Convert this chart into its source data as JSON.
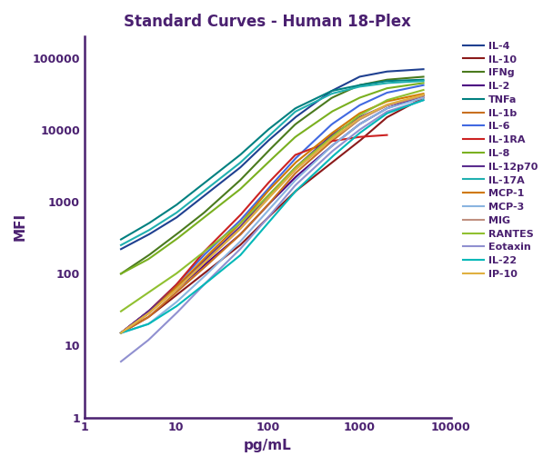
{
  "title": "Standard Curves - Human 18-Plex",
  "xlabel": "pg/mL",
  "ylabel": "MFI",
  "xlim": [
    1,
    10000
  ],
  "ylim": [
    1,
    200000
  ],
  "spine_color": "#4a2070",
  "text_color": "#4a2070",
  "curves": [
    {
      "name": "IL-4",
      "color": "#1f4090",
      "x": [
        2.5,
        5,
        10,
        20,
        50,
        100,
        200,
        500,
        1000,
        2000,
        5000
      ],
      "y": [
        220,
        350,
        600,
        1200,
        3000,
        7000,
        15000,
        35000,
        55000,
        65000,
        70000
      ]
    },
    {
      "name": "IL-10",
      "color": "#8b1a1a",
      "x": [
        2.5,
        5,
        10,
        20,
        50,
        100,
        200,
        500,
        1000,
        2000,
        5000
      ],
      "y": [
        15,
        25,
        50,
        100,
        250,
        600,
        1400,
        3500,
        7000,
        15000,
        28000
      ]
    },
    {
      "name": "IFNg",
      "color": "#4a7a1e",
      "x": [
        2.5,
        5,
        10,
        20,
        50,
        100,
        200,
        500,
        1000,
        2000,
        5000
      ],
      "y": [
        100,
        180,
        350,
        700,
        2000,
        5000,
        12000,
        28000,
        42000,
        50000,
        55000
      ]
    },
    {
      "name": "IL-2",
      "color": "#4b0082",
      "x": [
        2.5,
        5,
        10,
        20,
        50,
        100,
        200,
        500,
        1000,
        2000,
        5000
      ],
      "y": [
        15,
        30,
        60,
        130,
        350,
        900,
        2200,
        6000,
        12000,
        20000,
        30000
      ]
    },
    {
      "name": "TNFa",
      "color": "#008080",
      "x": [
        2.5,
        5,
        10,
        20,
        50,
        100,
        200,
        500,
        1000,
        2000,
        5000
      ],
      "y": [
        300,
        500,
        900,
        1800,
        4500,
        10000,
        20000,
        35000,
        42000,
        48000,
        50000
      ]
    },
    {
      "name": "IL-1b",
      "color": "#c87020",
      "x": [
        2.5,
        5,
        10,
        20,
        50,
        100,
        200,
        500,
        1000,
        2000,
        5000
      ],
      "y": [
        15,
        25,
        55,
        120,
        350,
        900,
        2500,
        7000,
        14000,
        22000,
        30000
      ]
    },
    {
      "name": "IL-6",
      "color": "#4169e1",
      "x": [
        2.5,
        5,
        10,
        20,
        50,
        100,
        200,
        500,
        1000,
        2000,
        5000
      ],
      "y": [
        15,
        30,
        70,
        180,
        550,
        1500,
        4000,
        12000,
        22000,
        33000,
        42000
      ]
    },
    {
      "name": "IL-1RA",
      "color": "#cc2222",
      "x": [
        2.5,
        5,
        10,
        20,
        50,
        100,
        200,
        500,
        1000,
        2000
      ],
      "y": [
        15,
        30,
        70,
        200,
        650,
        1800,
        4500,
        7000,
        8000,
        8500
      ]
    },
    {
      "name": "IL-8",
      "color": "#7ab020",
      "x": [
        2.5,
        5,
        10,
        20,
        50,
        100,
        200,
        500,
        1000,
        2000,
        5000
      ],
      "y": [
        100,
        160,
        300,
        600,
        1500,
        3500,
        8000,
        18000,
        28000,
        38000,
        45000
      ]
    },
    {
      "name": "IL-12p70",
      "color": "#5b2d8e",
      "x": [
        2.5,
        5,
        10,
        20,
        50,
        100,
        200,
        500,
        1000,
        2000,
        5000
      ],
      "y": [
        15,
        30,
        65,
        150,
        450,
        1200,
        3000,
        8500,
        15000,
        22000,
        30000
      ]
    },
    {
      "name": "IL-17A",
      "color": "#20b0b0",
      "x": [
        2.5,
        5,
        10,
        20,
        50,
        100,
        200,
        500,
        1000,
        2000,
        5000
      ],
      "y": [
        250,
        400,
        700,
        1400,
        3500,
        8000,
        18000,
        32000,
        40000,
        45000,
        48000
      ]
    },
    {
      "name": "MCP-1",
      "color": "#d07800",
      "x": [
        2.5,
        5,
        10,
        20,
        50,
        100,
        200,
        500,
        1000,
        2000,
        5000
      ],
      "y": [
        15,
        28,
        65,
        160,
        500,
        1400,
        3500,
        9000,
        17000,
        25000,
        32000
      ]
    },
    {
      "name": "MCP-3",
      "color": "#8ab4e0",
      "x": [
        2.5,
        5,
        10,
        20,
        50,
        100,
        200,
        500,
        1000,
        2000,
        5000
      ],
      "y": [
        15,
        20,
        40,
        90,
        280,
        750,
        2000,
        6000,
        12000,
        20000,
        28000
      ]
    },
    {
      "name": "MIG",
      "color": "#c09080",
      "x": [
        2.5,
        5,
        10,
        20,
        50,
        100,
        200,
        500,
        1000,
        2000,
        5000
      ],
      "y": [
        15,
        28,
        60,
        140,
        420,
        1100,
        2800,
        7500,
        14000,
        22000,
        30000
      ]
    },
    {
      "name": "RANTES",
      "color": "#90c030",
      "x": [
        2.5,
        5,
        10,
        20,
        50,
        100,
        200,
        500,
        1000,
        2000,
        5000
      ],
      "y": [
        30,
        55,
        100,
        200,
        500,
        1200,
        3000,
        8000,
        16000,
        26000,
        36000
      ]
    },
    {
      "name": "Eotaxin",
      "color": "#9090d0",
      "x": [
        2.5,
        5,
        10,
        20,
        50,
        100,
        200,
        500,
        1000,
        2000,
        5000
      ],
      "y": [
        6,
        12,
        28,
        70,
        220,
        600,
        1700,
        5000,
        10000,
        18000,
        26000
      ]
    },
    {
      "name": "IL-22",
      "color": "#00b8b8",
      "x": [
        2.5,
        5,
        10,
        20,
        50,
        100,
        200,
        500,
        1000,
        2000,
        5000
      ],
      "y": [
        15,
        20,
        35,
        70,
        180,
        500,
        1400,
        4200,
        9000,
        17000,
        26000
      ]
    },
    {
      "name": "IP-10",
      "color": "#e0b040",
      "x": [
        2.5,
        5,
        10,
        20,
        50,
        100,
        200,
        500,
        1000,
        2000,
        5000
      ],
      "y": [
        15,
        28,
        60,
        140,
        420,
        1100,
        2800,
        7500,
        14500,
        22500,
        31000
      ]
    }
  ]
}
